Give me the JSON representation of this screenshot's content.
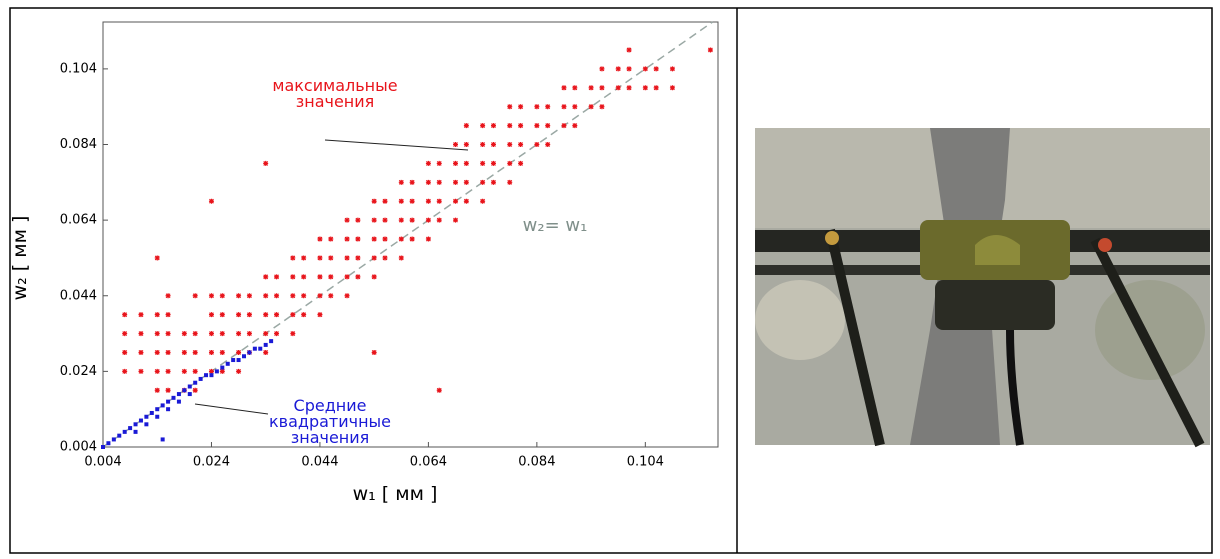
{
  "chart_data": {
    "type": "scatter",
    "xlabel": "w₁ [ мм ]",
    "ylabel": "w₂ [ мм ]",
    "reference_label": "w₂= w₁",
    "xlim": [
      0.004,
      0.1174
    ],
    "ylim": [
      0.004,
      0.1164
    ],
    "xticks": [
      0.004,
      0.024,
      0.044,
      0.064,
      0.084,
      0.104
    ],
    "yticks": [
      0.004,
      0.024,
      0.044,
      0.064,
      0.084,
      0.104
    ],
    "series": [
      {
        "name": "максимальные значения",
        "color": "#e8141b",
        "x": [
          0.008,
          0.008,
          0.008,
          0.008,
          0.011,
          0.011,
          0.011,
          0.011,
          0.014,
          0.014,
          0.014,
          0.014,
          0.014,
          0.014,
          0.016,
          0.016,
          0.016,
          0.016,
          0.016,
          0.016,
          0.019,
          0.019,
          0.019,
          0.019,
          0.021,
          0.021,
          0.021,
          0.021,
          0.021,
          0.024,
          0.024,
          0.024,
          0.024,
          0.024,
          0.024,
          0.026,
          0.026,
          0.026,
          0.026,
          0.026,
          0.029,
          0.029,
          0.029,
          0.029,
          0.029,
          0.031,
          0.031,
          0.031,
          0.031,
          0.034,
          0.034,
          0.034,
          0.034,
          0.034,
          0.034,
          0.036,
          0.036,
          0.036,
          0.036,
          0.039,
          0.039,
          0.039,
          0.039,
          0.039,
          0.041,
          0.041,
          0.041,
          0.041,
          0.044,
          0.044,
          0.044,
          0.044,
          0.044,
          0.046,
          0.046,
          0.046,
          0.046,
          0.049,
          0.049,
          0.049,
          0.049,
          0.049,
          0.051,
          0.051,
          0.051,
          0.051,
          0.054,
          0.054,
          0.054,
          0.054,
          0.054,
          0.054,
          0.056,
          0.056,
          0.056,
          0.056,
          0.059,
          0.059,
          0.059,
          0.059,
          0.059,
          0.061,
          0.061,
          0.061,
          0.061,
          0.064,
          0.064,
          0.064,
          0.064,
          0.064,
          0.066,
          0.066,
          0.066,
          0.066,
          0.066,
          0.069,
          0.069,
          0.069,
          0.069,
          0.069,
          0.071,
          0.071,
          0.071,
          0.071,
          0.071,
          0.074,
          0.074,
          0.074,
          0.074,
          0.074,
          0.076,
          0.076,
          0.076,
          0.076,
          0.079,
          0.079,
          0.079,
          0.079,
          0.079,
          0.081,
          0.081,
          0.081,
          0.081,
          0.084,
          0.084,
          0.084,
          0.086,
          0.086,
          0.086,
          0.089,
          0.089,
          0.089,
          0.091,
          0.091,
          0.091,
          0.094,
          0.094,
          0.096,
          0.096,
          0.096,
          0.099,
          0.099,
          0.101,
          0.101,
          0.101,
          0.104,
          0.104,
          0.106,
          0.106,
          0.109,
          0.109,
          0.116
        ],
        "values": [
          0.024,
          0.029,
          0.034,
          0.039,
          0.024,
          0.029,
          0.034,
          0.039,
          0.019,
          0.024,
          0.029,
          0.034,
          0.039,
          0.054,
          0.019,
          0.024,
          0.029,
          0.034,
          0.039,
          0.044,
          0.019,
          0.024,
          0.029,
          0.034,
          0.019,
          0.024,
          0.029,
          0.034,
          0.044,
          0.024,
          0.029,
          0.034,
          0.039,
          0.044,
          0.069,
          0.024,
          0.029,
          0.034,
          0.039,
          0.044,
          0.024,
          0.029,
          0.034,
          0.039,
          0.044,
          0.029,
          0.034,
          0.039,
          0.044,
          0.029,
          0.034,
          0.039,
          0.044,
          0.049,
          0.079,
          0.034,
          0.039,
          0.044,
          0.049,
          0.034,
          0.039,
          0.044,
          0.049,
          0.054,
          0.039,
          0.044,
          0.049,
          0.054,
          0.039,
          0.044,
          0.049,
          0.054,
          0.059,
          0.044,
          0.049,
          0.054,
          0.059,
          0.044,
          0.049,
          0.054,
          0.059,
          0.064,
          0.049,
          0.054,
          0.059,
          0.064,
          0.029,
          0.049,
          0.054,
          0.059,
          0.064,
          0.069,
          0.054,
          0.059,
          0.064,
          0.069,
          0.054,
          0.059,
          0.064,
          0.069,
          0.074,
          0.059,
          0.064,
          0.069,
          0.074,
          0.059,
          0.064,
          0.069,
          0.074,
          0.079,
          0.019,
          0.064,
          0.069,
          0.074,
          0.079,
          0.064,
          0.069,
          0.074,
          0.079,
          0.084,
          0.069,
          0.074,
          0.079,
          0.084,
          0.089,
          0.069,
          0.074,
          0.079,
          0.084,
          0.089,
          0.074,
          0.079,
          0.084,
          0.089,
          0.074,
          0.079,
          0.084,
          0.089,
          0.094,
          0.079,
          0.084,
          0.089,
          0.094,
          0.084,
          0.089,
          0.094,
          0.084,
          0.089,
          0.094,
          0.089,
          0.094,
          0.099,
          0.089,
          0.094,
          0.099,
          0.094,
          0.099,
          0.094,
          0.099,
          0.104,
          0.099,
          0.104,
          0.099,
          0.104,
          0.109,
          0.099,
          0.104,
          0.099,
          0.104,
          0.099,
          0.104,
          0.109
        ]
      },
      {
        "name": "Средние квадратичные значения",
        "color": "#1a1ad6",
        "x": [
          0.004,
          0.005,
          0.006,
          0.007,
          0.008,
          0.009,
          0.01,
          0.011,
          0.012,
          0.013,
          0.014,
          0.015,
          0.016,
          0.017,
          0.018,
          0.019,
          0.02,
          0.021,
          0.022,
          0.023,
          0.024,
          0.025,
          0.026,
          0.027,
          0.028,
          0.029,
          0.03,
          0.031,
          0.032,
          0.033,
          0.034,
          0.035,
          0.012,
          0.014,
          0.016,
          0.018,
          0.02,
          0.015,
          0.01
        ],
        "values": [
          0.004,
          0.005,
          0.006,
          0.007,
          0.008,
          0.009,
          0.01,
          0.011,
          0.012,
          0.013,
          0.014,
          0.015,
          0.016,
          0.017,
          0.018,
          0.019,
          0.02,
          0.021,
          0.022,
          0.023,
          0.023,
          0.024,
          0.025,
          0.026,
          0.027,
          0.027,
          0.028,
          0.029,
          0.03,
          0.03,
          0.031,
          0.032,
          0.01,
          0.012,
          0.014,
          0.016,
          0.018,
          0.006,
          0.008
        ]
      }
    ]
  }
}
